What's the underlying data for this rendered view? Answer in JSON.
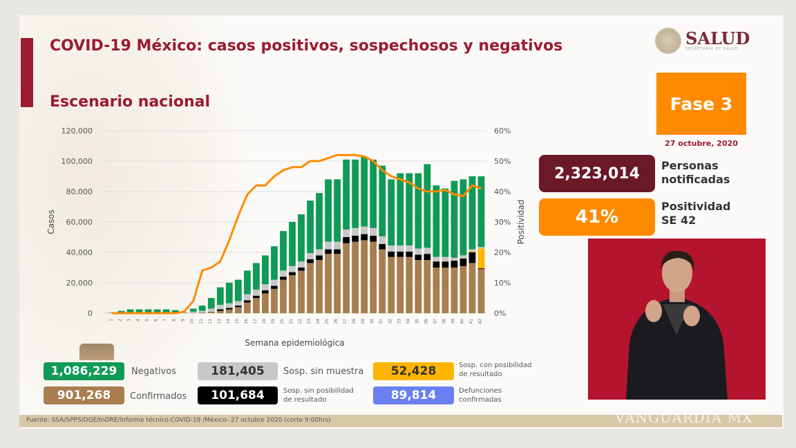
{
  "header": {
    "title": "COVID-19 México: casos positivos, sospechosos y negativos",
    "subtitle": "Escenario nacional"
  },
  "logo": {
    "name": "SALUD",
    "sub": "SECRETARÍA DE SALUD"
  },
  "phase": {
    "label": "Fase 3",
    "date": "27 octubre, 2020"
  },
  "kpis": [
    {
      "value": "2,323,014",
      "label1": "Personas",
      "label2": "notificadas",
      "color": "#6b1829"
    },
    {
      "value": "41%",
      "label1": "Positividad",
      "label2": "SE 42",
      "color": "#ff8a00"
    }
  ],
  "legend": [
    {
      "value": "1,086,229",
      "label": "Negativos",
      "color": "#0f9a55"
    },
    {
      "value": "901,268",
      "label": "Confirmados",
      "color": "#a87d4f"
    },
    {
      "value": "181,405",
      "label": "Sosp. sin muestra",
      "color": "#c8c8c8"
    },
    {
      "value": "101,684",
      "label1": "Sosp. sin posibilidad",
      "label2": "de resultado",
      "color": "#000000"
    },
    {
      "value": "52,428",
      "label1": "Sosp. con posibilidad",
      "label2": "de resultado",
      "color": "#ffb400"
    },
    {
      "value": "89,814",
      "label1": "Defunciones",
      "label2": "confirmadas",
      "color": "#6a7ff0"
    }
  ],
  "source": "Fuente: SSA/SPPS/DGE/InDRE/Informe técnico.COVID-19 /México- 27 octubre 2020 (corte 9:00hrs)",
  "watermark": "VANGUARDIA MX",
  "chart_data": {
    "type": "bar",
    "stacked": true,
    "xlabel": "Semana epidemiológica",
    "ylabel": "Casos",
    "y2label": "Positividad",
    "ylim": [
      0,
      120000
    ],
    "yticks": [
      "0",
      "20,000",
      "40,000",
      "60,000",
      "80,000",
      "100,000",
      "120,000"
    ],
    "y2lim": [
      0,
      60
    ],
    "y2ticks": [
      "0%",
      "10%",
      "20%",
      "30%",
      "40%",
      "50%",
      "60%"
    ],
    "grid": true,
    "categories": [
      "1",
      "2",
      "3",
      "4",
      "5",
      "6",
      "7",
      "8",
      "9",
      "10",
      "11",
      "12",
      "13",
      "14",
      "15",
      "16",
      "17",
      "18",
      "19",
      "20",
      "21",
      "22",
      "23",
      "24",
      "25",
      "26",
      "27",
      "28",
      "29",
      "30",
      "31",
      "32",
      "33",
      "34",
      "35",
      "36",
      "37",
      "38",
      "39",
      "40",
      "41",
      "42"
    ],
    "series": [
      {
        "name": "Confirmados",
        "color": "#a87d4f",
        "values": [
          0,
          0,
          0,
          0,
          0,
          0,
          0,
          0,
          0,
          300,
          500,
          800,
          1500,
          2500,
          4000,
          7000,
          10000,
          13000,
          16000,
          22000,
          25000,
          28000,
          33000,
          35000,
          39000,
          39000,
          46000,
          47000,
          48000,
          47000,
          42000,
          37000,
          37000,
          37000,
          35000,
          35000,
          30000,
          30000,
          30000,
          31000,
          33000,
          29000
        ]
      },
      {
        "name": "Sosp. sin posibilidad de resultado",
        "color": "#000000",
        "values": [
          0,
          0,
          0,
          0,
          0,
          0,
          0,
          0,
          0,
          0,
          0,
          200,
          1000,
          1000,
          1000,
          1500,
          1500,
          2000,
          2000,
          2000,
          2000,
          2000,
          2500,
          3000,
          3000,
          3000,
          4000,
          4000,
          4000,
          4000,
          3500,
          3500,
          3500,
          3500,
          3500,
          4000,
          4000,
          4000,
          4500,
          5000,
          7000,
          500
        ]
      },
      {
        "name": "Sosp. con posibilidad de resultado",
        "color": "#ffb400",
        "values": [
          0,
          0,
          0,
          0,
          0,
          0,
          0,
          0,
          0,
          0,
          0,
          0,
          0,
          0,
          0,
          0,
          0,
          0,
          0,
          0,
          0,
          0,
          0,
          0,
          0,
          0,
          0,
          0,
          0,
          0,
          0,
          0,
          0,
          0,
          0,
          0,
          0,
          0,
          0,
          0,
          500,
          13000
        ]
      },
      {
        "name": "Sosp. sin muestra",
        "color": "#c8c8c8",
        "values": [
          200,
          500,
          500,
          500,
          500,
          500,
          500,
          500,
          200,
          700,
          1000,
          2000,
          3000,
          3000,
          3000,
          4000,
          4000,
          4000,
          4000,
          4000,
          4000,
          4000,
          4000,
          4000,
          5000,
          5000,
          5000,
          5000,
          5000,
          5000,
          5000,
          4000,
          4000,
          4000,
          4000,
          4000,
          3000,
          3000,
          2000,
          2000,
          1500,
          1000
        ]
      },
      {
        "name": "Negativos",
        "color": "#0f9a55",
        "values": [
          300,
          1000,
          2000,
          2000,
          2000,
          2000,
          2000,
          1500,
          300,
          2000,
          3500,
          7000,
          11500,
          13500,
          14000,
          15500,
          17500,
          19000,
          22000,
          26000,
          29000,
          31000,
          34500,
          37000,
          41000,
          41000,
          46000,
          45000,
          46000,
          45000,
          46500,
          43500,
          47500,
          47500,
          49500,
          55000,
          47000,
          45000,
          50500,
          50000,
          48000,
          46500
        ]
      }
    ],
    "line": {
      "name": "Positividad",
      "color": "#ff8a00",
      "values": [
        0,
        0,
        0,
        0,
        0,
        0,
        0,
        0,
        0.5,
        4,
        14,
        15,
        17,
        24,
        32,
        39,
        42,
        42,
        45,
        47,
        48,
        48,
        50,
        50,
        51,
        52,
        52,
        52,
        51.5,
        50,
        47,
        45,
        44,
        43,
        41,
        40,
        40,
        40.5,
        39,
        38.5,
        42,
        41
      ]
    }
  }
}
